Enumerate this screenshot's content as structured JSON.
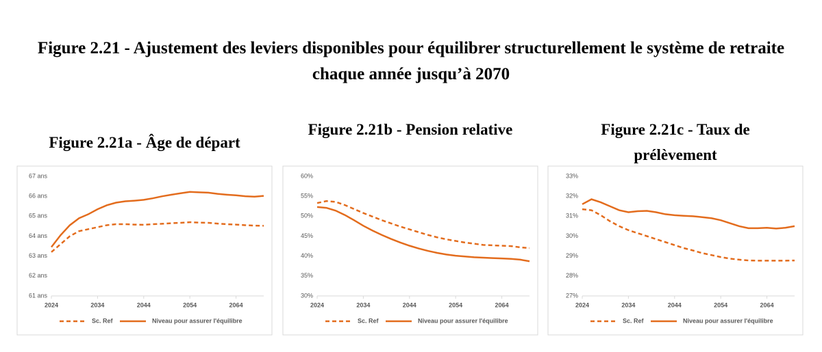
{
  "title": "Figure 2.21 - Ajustement des leviers disponibles pour équilibrer structurellement le système de retraite chaque année jusqu’à 2070",
  "chart_data": [
    {
      "type": "line",
      "title": "Figure 2.21a - Âge de départ",
      "x": [
        2024,
        2026,
        2028,
        2030,
        2032,
        2034,
        2036,
        2038,
        2040,
        2042,
        2044,
        2046,
        2048,
        2050,
        2052,
        2054,
        2056,
        2058,
        2060,
        2062,
        2064,
        2066,
        2068,
        2070
      ],
      "xlim": [
        2024,
        2070
      ],
      "xticks": [
        2024,
        2034,
        2044,
        2054,
        2064
      ],
      "ylim": [
        61,
        67
      ],
      "yticks": [
        {
          "value": 61,
          "label": "61 ans"
        },
        {
          "value": 62,
          "label": "62 ans"
        },
        {
          "value": 63,
          "label": "63 ans"
        },
        {
          "value": 64,
          "label": "64 ans"
        },
        {
          "value": 65,
          "label": "65 ans"
        },
        {
          "value": 66,
          "label": "66 ans"
        },
        {
          "value": 67,
          "label": "67 ans"
        }
      ],
      "grid": false,
      "series": [
        {
          "name": "Sc. Ref",
          "color": "#e36c1d",
          "line_style": "dashed",
          "values": [
            63.2,
            63.6,
            64.0,
            64.25,
            64.35,
            64.45,
            64.55,
            64.6,
            64.6,
            64.58,
            64.57,
            64.6,
            64.62,
            64.65,
            64.67,
            64.7,
            64.68,
            64.67,
            64.63,
            64.6,
            64.58,
            64.55,
            64.53,
            64.52
          ]
        },
        {
          "name": "Niveau pour assurer l'équilibre",
          "color": "#e36c1d",
          "line_style": "solid",
          "values": [
            63.45,
            64.05,
            64.55,
            64.9,
            65.1,
            65.35,
            65.55,
            65.68,
            65.75,
            65.78,
            65.82,
            65.9,
            66.0,
            66.08,
            66.15,
            66.22,
            66.2,
            66.18,
            66.12,
            66.08,
            66.05,
            66.0,
            65.98,
            66.02
          ]
        }
      ]
    },
    {
      "type": "line",
      "title": "Figure 2.21b - Pension relative",
      "x": [
        2024,
        2026,
        2028,
        2030,
        2032,
        2034,
        2036,
        2038,
        2040,
        2042,
        2044,
        2046,
        2048,
        2050,
        2052,
        2054,
        2056,
        2058,
        2060,
        2062,
        2064,
        2066,
        2068,
        2070
      ],
      "xlim": [
        2024,
        2070
      ],
      "xticks": [
        2024,
        2034,
        2044,
        2054,
        2064
      ],
      "ylim": [
        30,
        60
      ],
      "yticks": [
        {
          "value": 30,
          "label": "30%"
        },
        {
          "value": 35,
          "label": "35%"
        },
        {
          "value": 40,
          "label": "40%"
        },
        {
          "value": 45,
          "label": "45%"
        },
        {
          "value": 50,
          "label": "50%"
        },
        {
          "value": 55,
          "label": "55%"
        },
        {
          "value": 60,
          "label": "60%"
        }
      ],
      "grid": false,
      "series": [
        {
          "name": "Sc. Ref",
          "color": "#e36c1d",
          "line_style": "dashed",
          "values": [
            53.3,
            53.8,
            53.6,
            52.8,
            51.8,
            50.8,
            49.9,
            49.0,
            48.2,
            47.4,
            46.7,
            46.0,
            45.3,
            44.7,
            44.2,
            43.8,
            43.4,
            43.1,
            42.8,
            42.7,
            42.6,
            42.5,
            42.2,
            42.0
          ]
        },
        {
          "name": "Niveau pour assurer l'équilibre",
          "color": "#e36c1d",
          "line_style": "solid",
          "values": [
            52.3,
            52.1,
            51.4,
            50.3,
            49.0,
            47.6,
            46.4,
            45.3,
            44.3,
            43.4,
            42.6,
            41.9,
            41.3,
            40.8,
            40.4,
            40.1,
            39.9,
            39.7,
            39.6,
            39.5,
            39.4,
            39.3,
            39.1,
            38.7
          ]
        }
      ]
    },
    {
      "type": "line",
      "title": "Figure 2.21c - Taux de prélèvement",
      "x": [
        2024,
        2026,
        2028,
        2030,
        2032,
        2034,
        2036,
        2038,
        2040,
        2042,
        2044,
        2046,
        2048,
        2050,
        2052,
        2054,
        2056,
        2058,
        2060,
        2062,
        2064,
        2066,
        2068,
        2070
      ],
      "xlim": [
        2024,
        2070
      ],
      "xticks": [
        2024,
        2034,
        2044,
        2054,
        2064
      ],
      "ylim": [
        27,
        33
      ],
      "yticks": [
        {
          "value": 27,
          "label": "27%"
        },
        {
          "value": 28,
          "label": "28%"
        },
        {
          "value": 29,
          "label": "29%"
        },
        {
          "value": 30,
          "label": "30%"
        },
        {
          "value": 31,
          "label": "31%"
        },
        {
          "value": 32,
          "label": "32%"
        },
        {
          "value": 33,
          "label": "33%"
        }
      ],
      "grid": false,
      "series": [
        {
          "name": "Sc. Ref",
          "color": "#e36c1d",
          "line_style": "dashed",
          "values": [
            31.35,
            31.3,
            31.05,
            30.75,
            30.5,
            30.3,
            30.15,
            30.0,
            29.85,
            29.7,
            29.55,
            29.4,
            29.28,
            29.15,
            29.05,
            28.95,
            28.87,
            28.82,
            28.78,
            28.77,
            28.77,
            28.77,
            28.77,
            28.78
          ]
        },
        {
          "name": "Niveau pour assurer l'équilibre",
          "color": "#e36c1d",
          "line_style": "solid",
          "values": [
            31.6,
            31.85,
            31.7,
            31.5,
            31.3,
            31.2,
            31.25,
            31.27,
            31.2,
            31.1,
            31.05,
            31.02,
            31.0,
            30.95,
            30.9,
            30.8,
            30.65,
            30.5,
            30.4,
            30.4,
            30.42,
            30.38,
            30.42,
            30.5
          ]
        }
      ]
    }
  ]
}
